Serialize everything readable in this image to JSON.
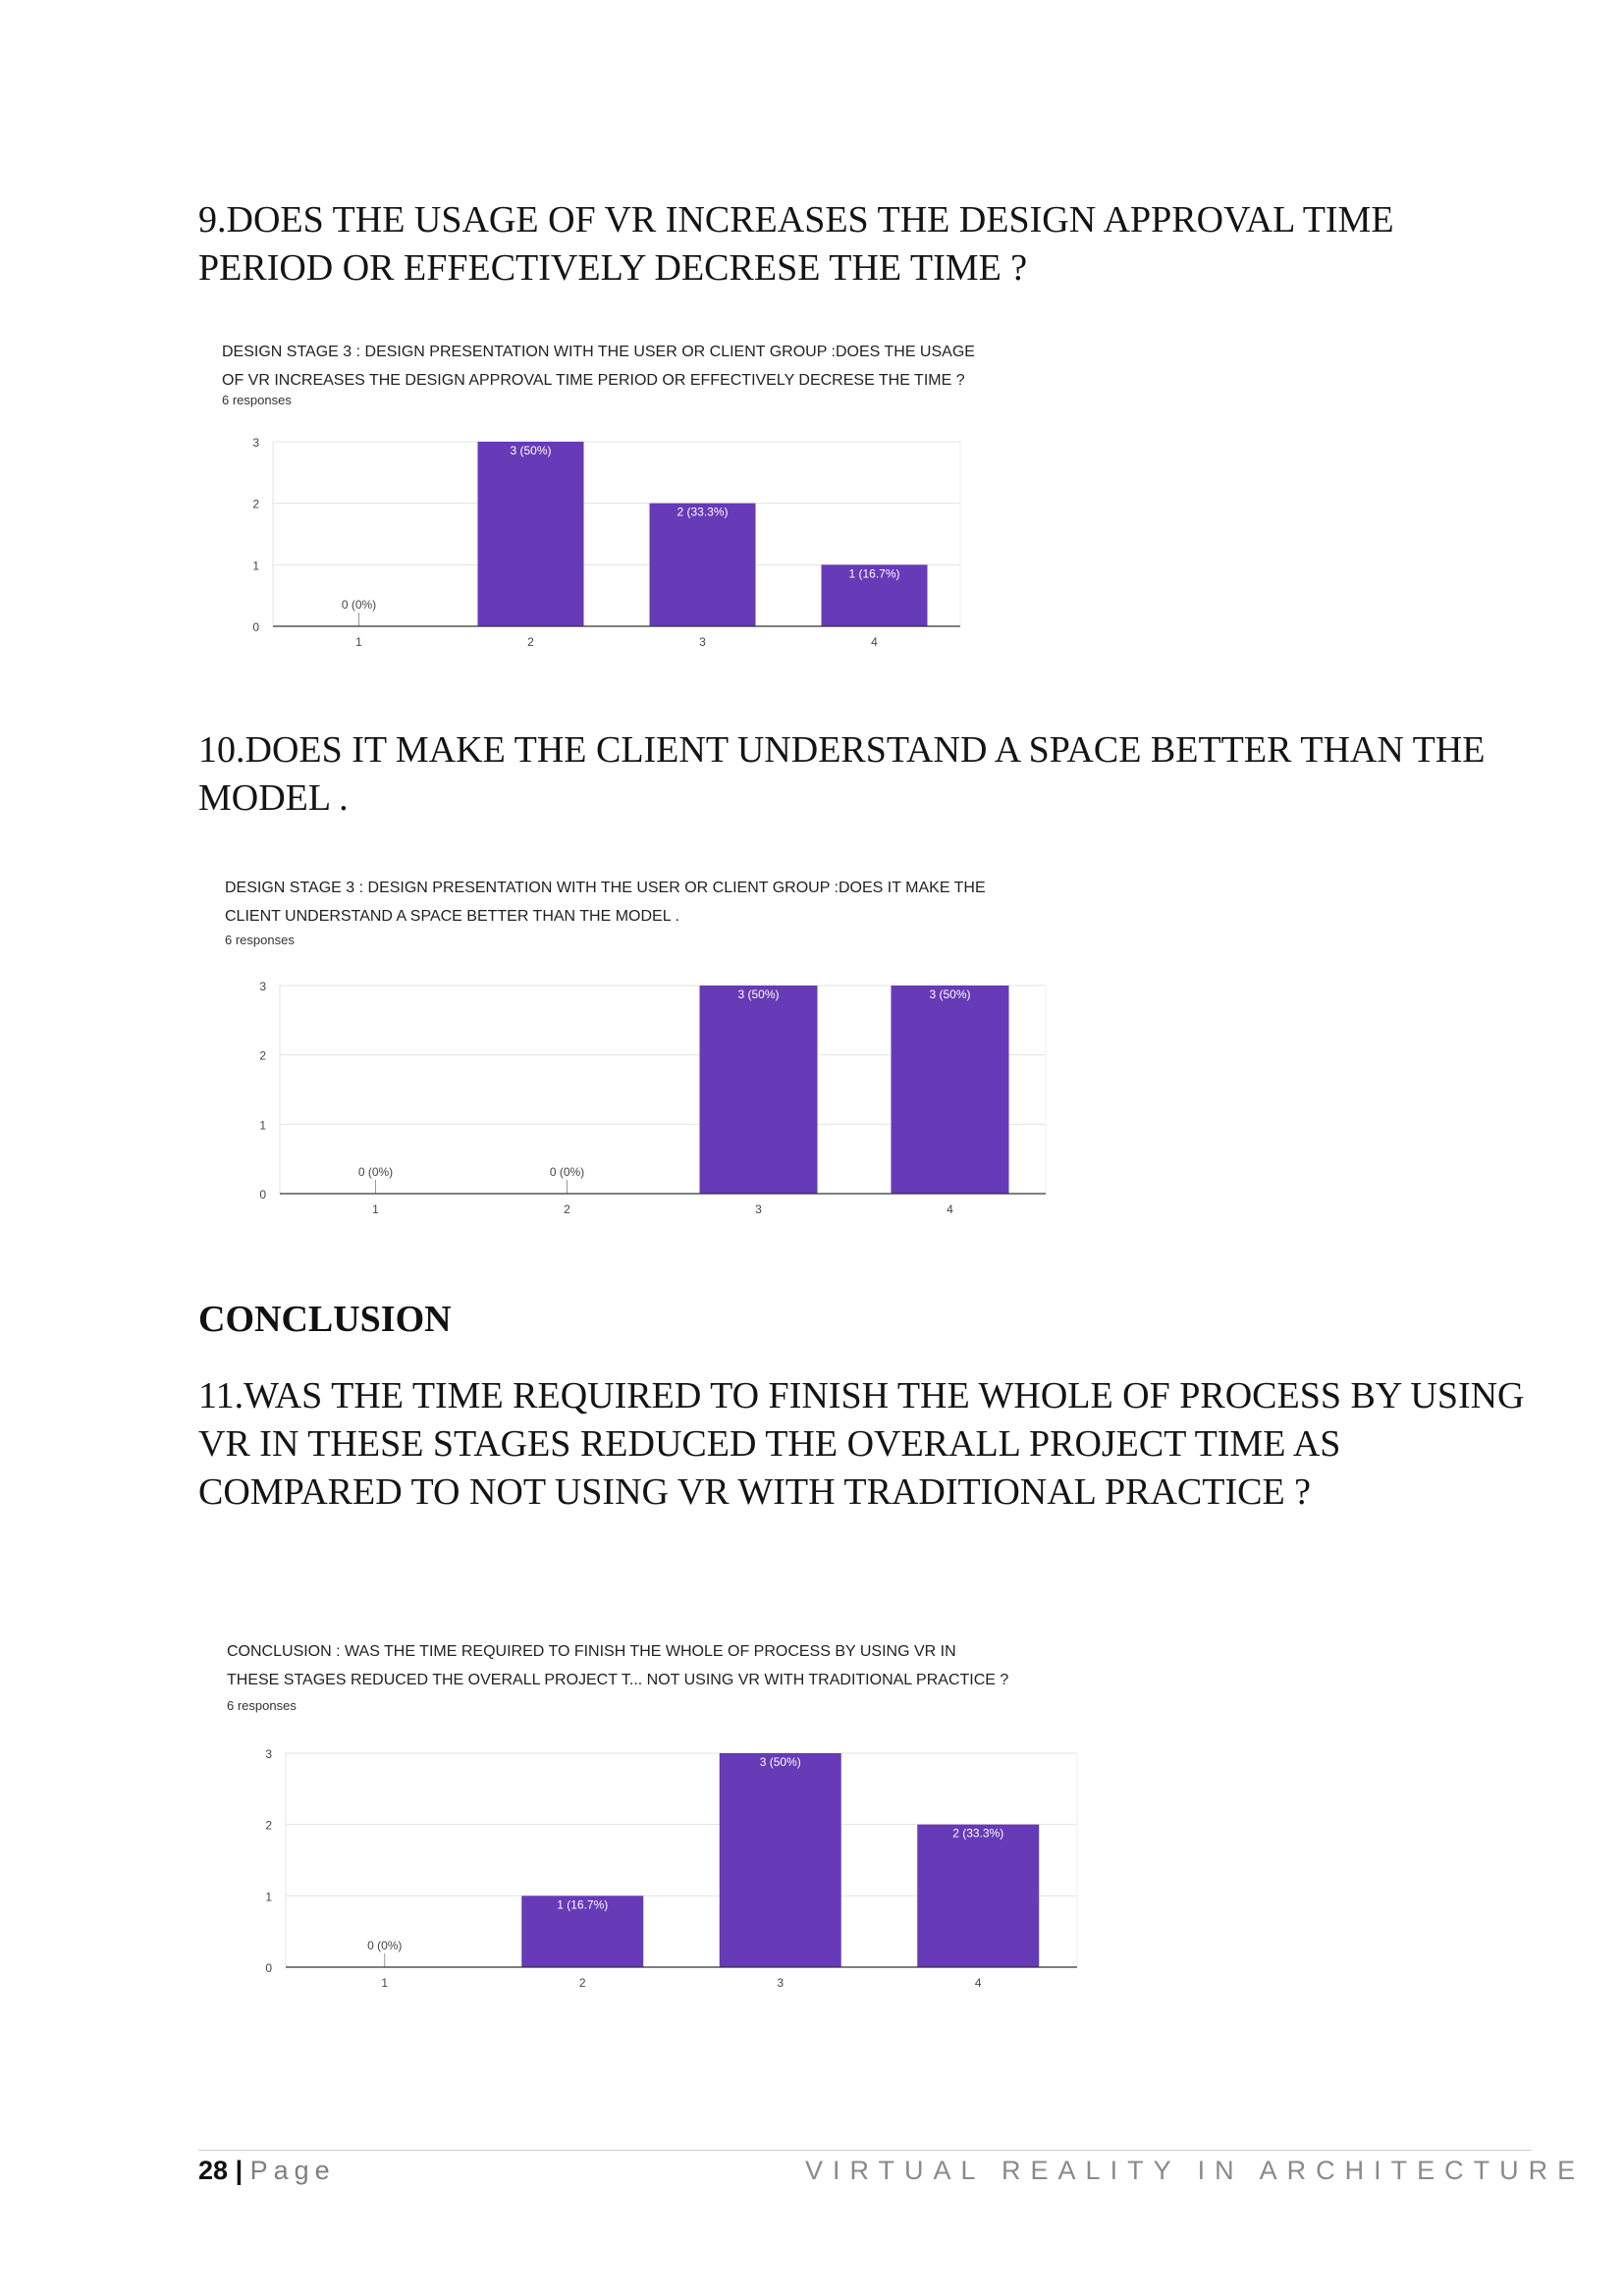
{
  "questions": {
    "q9": "9.DOES THE USAGE OF VR INCREASES THE DESIGN APPROVAL TIME PERIOD OR EFFECTIVELY DECRESE THE TIME ?",
    "q10": "10.DOES IT MAKE THE CLIENT UNDERSTAND A SPACE BETTER THAN THE MODEL .",
    "conclusion_heading": "CONCLUSION",
    "q11": "11.WAS THE TIME REQUIRED TO FINISH THE WHOLE OF PROCESS BY USING VR IN THESE STAGES REDUCED THE OVERALL PROJECT TIME AS COMPARED TO NOT USING VR WITH TRADITIONAL PRACTICE ?"
  },
  "chart_data": [
    {
      "type": "bar",
      "title": "DESIGN STAGE 3 : DESIGN PRESENTATION WITH THE USER OR CLIENT GROUP :DOES THE USAGE OF VR INCREASES THE DESIGN APPROVAL TIME PERIOD OR EFFECTIVELY DECRESE THE TIME ?",
      "title_lines": [
        "DESIGN STAGE 3 : DESIGN PRESENTATION WITH THE USER OR CLIENT GROUP :DOES THE USAGE",
        "OF VR INCREASES THE DESIGN APPROVAL TIME PERIOD OR EFFECTIVELY DECRESE THE TIME ?"
      ],
      "responses": "6 responses",
      "categories": [
        "1",
        "2",
        "3",
        "4"
      ],
      "values": [
        0,
        3,
        2,
        1
      ],
      "data_labels": [
        "0 (0%)",
        "3 (50%)",
        "2 (33.3%)",
        "1 (16.7%)"
      ],
      "yticks": [
        "0",
        "1",
        "2",
        "3"
      ],
      "ylim": [
        0,
        3
      ],
      "grid": true,
      "bar_color": "#673ab7"
    },
    {
      "type": "bar",
      "title": "DESIGN STAGE 3 : DESIGN PRESENTATION WITH THE USER OR CLIENT GROUP :DOES IT MAKE THE CLIENT UNDERSTAND A SPACE BETTER THAN THE MODEL .",
      "title_lines": [
        "DESIGN STAGE 3 : DESIGN PRESENTATION WITH THE USER OR CLIENT GROUP :DOES IT MAKE THE",
        "CLIENT UNDERSTAND A SPACE BETTER THAN THE MODEL ."
      ],
      "responses": "6 responses",
      "categories": [
        "1",
        "2",
        "3",
        "4"
      ],
      "values": [
        0,
        0,
        3,
        3
      ],
      "data_labels": [
        "0 (0%)",
        "0 (0%)",
        "3 (50%)",
        "3 (50%)"
      ],
      "yticks": [
        "0",
        "1",
        "2",
        "3"
      ],
      "ylim": [
        0,
        3
      ],
      "grid": true,
      "bar_color": "#673ab7"
    },
    {
      "type": "bar",
      "title": "CONCLUSION : WAS THE TIME REQUIRED TO FINISH THE WHOLE OF PROCESS BY USING VR IN THESE STAGES REDUCED THE OVERALL PROJECT T... NOT USING VR WITH TRADITIONAL PRACTICE ?",
      "title_lines": [
        "CONCLUSION : WAS THE TIME REQUIRED TO FINISH THE WHOLE OF PROCESS BY USING VR IN",
        "THESE STAGES REDUCED THE OVERALL PROJECT T... NOT USING VR WITH TRADITIONAL PRACTICE ?"
      ],
      "responses": "6 responses",
      "categories": [
        "1",
        "2",
        "3",
        "4"
      ],
      "values": [
        0,
        1,
        3,
        2
      ],
      "data_labels": [
        "0 (0%)",
        "1 (16.7%)",
        "3 (50%)",
        "2 (33.3%)"
      ],
      "yticks": [
        "0",
        "1",
        "2",
        "3"
      ],
      "ylim": [
        0,
        3
      ],
      "grid": true,
      "bar_color": "#673ab7"
    }
  ],
  "footer": {
    "page_number": "28",
    "separator": "|",
    "page_word": "Page",
    "running_title": "VIRTUAL REALITY IN ARCHITECTURE"
  }
}
